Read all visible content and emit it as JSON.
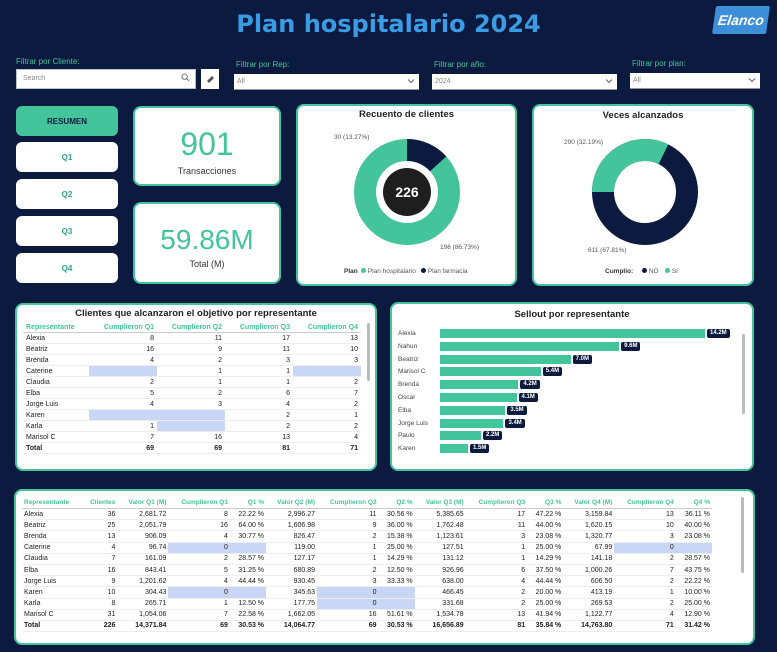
{
  "title": "Plan hospitalario 2024",
  "logo_text": "Elanco",
  "filters": {
    "cliente": {
      "label": "Filtrar por Cliente:",
      "placeholder": "Search"
    },
    "rep": {
      "label": "Filtrar por Rep:",
      "value": "All"
    },
    "anio": {
      "label": "Filtrar por año:",
      "value": "2024"
    },
    "plan": {
      "label": "Filtrar por plan:",
      "value": "All"
    }
  },
  "buttons": [
    "RESUMEN",
    "Q1",
    "Q2",
    "Q3",
    "Q4"
  ],
  "kpi": {
    "transacciones": {
      "value": "901",
      "label": "Transacciones"
    },
    "total": {
      "value": "59.86M",
      "label": "Total (M)"
    }
  },
  "recuento": {
    "title": "Recuento de clientes",
    "center": "226",
    "label_a": "30 (13.27%)",
    "label_b": "196 (86.73%)",
    "legend_title": "Plan",
    "legend_a": "Plan hospitalario",
    "legend_b": "Plan farmacia",
    "values": [
      196,
      30
    ]
  },
  "veces": {
    "title": "Veces alcanzados",
    "label_a": "290 (32.19%)",
    "label_b": "611 (67.81%)",
    "legend_title": "Cumplio:",
    "legend_a": "NO",
    "legend_b": "SI",
    "values": [
      290,
      611
    ]
  },
  "colors": {
    "accent": "#43c49a",
    "navy": "#0b1a3e",
    "title": "#3a9ce4",
    "highlight": "#c9d6f5"
  },
  "clientes_table": {
    "title": "Clientes que alcanzaron el objetivo por representante",
    "headers": [
      "Representante",
      "Cumplieron Q1",
      "Cumplieron Q2",
      "Cumplieron Q3",
      "Cumplieron Q4"
    ],
    "rows": [
      [
        "Alexia",
        "8",
        "11",
        "17",
        "13"
      ],
      [
        "Beatriz",
        "16",
        "9",
        "11",
        "10"
      ],
      [
        "Brenda",
        "4",
        "2",
        "3",
        "3"
      ],
      [
        "Caterine",
        "",
        "1",
        "1",
        ""
      ],
      [
        "Claudia",
        "2",
        "1",
        "1",
        "2"
      ],
      [
        "Elba",
        "5",
        "2",
        "6",
        "7"
      ],
      [
        "Jorge Luis",
        "4",
        "3",
        "4",
        "2"
      ],
      [
        "Karen",
        "",
        "",
        "2",
        "1"
      ],
      [
        "Karla",
        "1",
        "",
        "2",
        "2"
      ],
      [
        "Marisol C",
        "7",
        "16",
        "13",
        "4"
      ]
    ],
    "total": [
      "Total",
      "69",
      "69",
      "81",
      "71"
    ]
  },
  "sellout": {
    "title": "Sellout por representante",
    "chart_data": {
      "type": "bar",
      "categories": [
        "Alexia",
        "Nahun",
        "Beatriz",
        "Marisol C",
        "Brenda",
        "Oscar",
        "Elba",
        "Jorge Luis",
        "Paulo",
        "Karen"
      ],
      "values": [
        14.2,
        9.6,
        7.0,
        5.4,
        4.2,
        4.1,
        3.5,
        3.4,
        2.2,
        1.5
      ],
      "labels": [
        "14.2M",
        "9.6M",
        "7.0M",
        "5.4M",
        "4.2M",
        "4.1M",
        "3.5M",
        "3.4M",
        "2.2M",
        "1.5M"
      ]
    }
  },
  "detail_table": {
    "headers": [
      "Representante",
      "Clientes",
      "Valor Q1 (M)",
      "Cumplieron Q1",
      "Q1 %",
      "Valor Q2 (M)",
      "Cumplieron Q2",
      "Q2 %",
      "Valor Q3 (M)",
      "Cumplieron Q3",
      "Q3 %",
      "Valor Q4 (M)",
      "Cumplieron Q4",
      "Q4 %"
    ],
    "rows": [
      [
        "Alexia",
        "36",
        "2,681.72",
        "8",
        "22.22 %",
        "2,996.27",
        "11",
        "30.56 %",
        "5,385.65",
        "17",
        "47.22 %",
        "3,159.84",
        "13",
        "36.11 %"
      ],
      [
        "Beatriz",
        "25",
        "2,051.79",
        "16",
        "64.00 %",
        "1,606.98",
        "9",
        "36.00 %",
        "1,762.48",
        "11",
        "44.00 %",
        "1,620.15",
        "10",
        "40.00 %"
      ],
      [
        "Brenda",
        "13",
        "906.09",
        "4",
        "30.77 %",
        "826.47",
        "2",
        "15.38 %",
        "1,123.61",
        "3",
        "23.08 %",
        "1,320.77",
        "3",
        "23.08 %"
      ],
      [
        "Caterine",
        "4",
        "96.74",
        "0",
        "",
        "119.00",
        "1",
        "25.00 %",
        "127.51",
        "1",
        "25.00 %",
        "67.99",
        "0",
        ""
      ],
      [
        "Claudia",
        "7",
        "161.09",
        "2",
        "28.57 %",
        "127.17",
        "1",
        "14.29 %",
        "131.12",
        "1",
        "14.29 %",
        "141.18",
        "2",
        "28.57 %"
      ],
      [
        "Elba",
        "16",
        "843.41",
        "5",
        "31.25 %",
        "680.89",
        "2",
        "12.50 %",
        "926.96",
        "6",
        "37.50 %",
        "1,000.26",
        "7",
        "43.75 %"
      ],
      [
        "Jorge Luis",
        "9",
        "1,201.62",
        "4",
        "44.44 %",
        "930.45",
        "3",
        "33.33 %",
        "638.00",
        "4",
        "44.44 %",
        "606.50",
        "2",
        "22.22 %"
      ],
      [
        "Karen",
        "10",
        "304.43",
        "0",
        "",
        "345.63",
        "0",
        "",
        "466.45",
        "2",
        "20.00 %",
        "413.19",
        "1",
        "10.00 %"
      ],
      [
        "Karla",
        "8",
        "265.71",
        "1",
        "12.50 %",
        "177.75",
        "0",
        "",
        "331.68",
        "2",
        "25.00 %",
        "269.53",
        "2",
        "25.00 %"
      ],
      [
        "Marisol C",
        "31",
        "1,054.06",
        "7",
        "22.58 %",
        "1,662.05",
        "16",
        "51.61 %",
        "1,534.78",
        "13",
        "41.94 %",
        "1,122.77",
        "4",
        "12.90 %"
      ]
    ],
    "total": [
      "Total",
      "226",
      "14,371.84",
      "69",
      "30.53 %",
      "14,064.77",
      "69",
      "30.53 %",
      "16,656.89",
      "81",
      "35.84 %",
      "14,763.80",
      "71",
      "31.42 %"
    ]
  }
}
